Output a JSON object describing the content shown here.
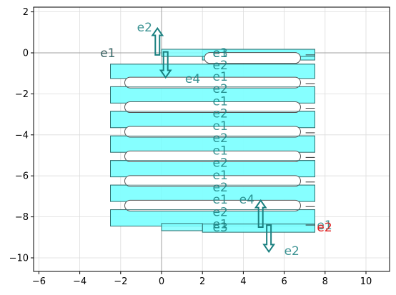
{
  "chart_data": {
    "type": "layout",
    "title": "",
    "xlabel": "",
    "ylabel": "",
    "xlim": [
      -6.2,
      11.2
    ],
    "ylim": [
      -10.6,
      2.25
    ],
    "xticks": [
      -6,
      -4,
      -2,
      0,
      2,
      4,
      6,
      8,
      10
    ],
    "yticks": [
      2,
      0,
      -2,
      -4,
      -6,
      -8,
      -10
    ],
    "grid": true,
    "colors": {
      "fill": "#80ffff",
      "outline": "#2f6f6f",
      "teal_label": "#1a8080",
      "red_label": "#e02020",
      "arrow": "#1a8080",
      "axis_zero": "#a0a0a0",
      "grid": "#dcdcdc"
    },
    "waveguides": [
      {
        "x": [
          0.0,
          7.5
        ],
        "y": 0.0,
        "w": 0.35
      },
      {
        "x": [
          0.0,
          2.0
        ],
        "y": -8.5,
        "w": 0.35
      }
    ],
    "bars": [
      {
        "x": [
          2.0,
          7.5
        ],
        "y": [
          -0.35,
          0.15
        ]
      },
      {
        "x": [
          -2.5,
          7.5
        ],
        "y": [
          -1.25,
          -0.55
        ]
      },
      {
        "x": [
          -2.5,
          7.5
        ],
        "y": [
          -2.45,
          -1.65
        ]
      },
      {
        "x": [
          -2.5,
          7.5
        ],
        "y": [
          -3.65,
          -2.85
        ]
      },
      {
        "x": [
          -2.5,
          7.5
        ],
        "y": [
          -4.85,
          -4.05
        ]
      },
      {
        "x": [
          -2.5,
          7.5
        ],
        "y": [
          -6.05,
          -5.25
        ]
      },
      {
        "x": [
          -2.5,
          7.5
        ],
        "y": [
          -7.25,
          -6.45
        ]
      },
      {
        "x": [
          -2.5,
          7.5
        ],
        "y": [
          -8.45,
          -7.65
        ]
      },
      {
        "x": [
          2.0,
          7.5
        ],
        "y": [
          -8.75,
          -8.35
        ]
      }
    ],
    "loops": [
      {
        "y": -0.25,
        "x": [
          2.1,
          6.8
        ]
      },
      {
        "y": -1.45,
        "x": [
          -1.8,
          6.8
        ]
      },
      {
        "y": -2.65,
        "x": [
          -1.8,
          6.8
        ]
      },
      {
        "y": -3.85,
        "x": [
          -1.8,
          6.8
        ]
      },
      {
        "y": -5.05,
        "x": [
          -1.8,
          6.8
        ]
      },
      {
        "y": -6.25,
        "x": [
          -1.8,
          6.8
        ]
      },
      {
        "y": -7.45,
        "x": [
          -1.8,
          6.8
        ]
      }
    ],
    "inner_lines": [
      -0.55,
      -1.65,
      -2.85,
      -4.05,
      -5.25,
      -6.45,
      -7.65
    ],
    "right_ticks": [
      -0.1,
      -1.5,
      -2.7,
      -3.9,
      -5.1,
      -6.3,
      -7.5,
      -8.4
    ],
    "arrows": [
      {
        "x": -0.2,
        "y_from": -0.1,
        "y_to": 1.2,
        "dir": "up"
      },
      {
        "x": 0.2,
        "y_from": 0.05,
        "y_to": -1.2,
        "dir": "down"
      },
      {
        "x": 4.85,
        "y_from": -8.5,
        "y_to": -7.2,
        "dir": "up"
      },
      {
        "x": 5.25,
        "y_from": -8.4,
        "y_to": -9.7,
        "dir": "down"
      }
    ],
    "labels": [
      {
        "text": "e1",
        "x": -3.0,
        "y": 0.0,
        "color": "red"
      },
      {
        "text": "e1",
        "x": -3.0,
        "y": 0.0,
        "color": "teal"
      },
      {
        "text": "e2",
        "x": -1.2,
        "y": 1.25,
        "color": "teal"
      },
      {
        "text": "e4",
        "x": 1.15,
        "y": -1.25,
        "color": "teal"
      },
      {
        "text": "e3",
        "x": 2.5,
        "y": 0.0,
        "color": "teal"
      },
      {
        "text": "e1",
        "x": 2.5,
        "y": 0.0,
        "color": "teal"
      },
      {
        "text": "e2",
        "x": 2.5,
        "y": -0.6,
        "color": "teal"
      },
      {
        "text": "e1",
        "x": 2.5,
        "y": -1.15,
        "color": "teal"
      },
      {
        "text": "e2",
        "x": 2.5,
        "y": -1.75,
        "color": "teal"
      },
      {
        "text": "e1",
        "x": 2.5,
        "y": -2.35,
        "color": "teal"
      },
      {
        "text": "e2",
        "x": 2.5,
        "y": -2.95,
        "color": "teal"
      },
      {
        "text": "e1",
        "x": 2.5,
        "y": -3.55,
        "color": "teal"
      },
      {
        "text": "e2",
        "x": 2.5,
        "y": -4.15,
        "color": "teal"
      },
      {
        "text": "e1",
        "x": 2.5,
        "y": -4.75,
        "color": "teal"
      },
      {
        "text": "e2",
        "x": 2.5,
        "y": -5.35,
        "color": "teal"
      },
      {
        "text": "e1",
        "x": 2.5,
        "y": -5.95,
        "color": "teal"
      },
      {
        "text": "e2",
        "x": 2.5,
        "y": -6.55,
        "color": "teal"
      },
      {
        "text": "e1",
        "x": 2.5,
        "y": -7.15,
        "color": "teal"
      },
      {
        "text": "e2",
        "x": 2.5,
        "y": -7.75,
        "color": "teal"
      },
      {
        "text": "e1",
        "x": 2.5,
        "y": -8.35,
        "color": "teal"
      },
      {
        "text": "e3",
        "x": 2.5,
        "y": -8.5,
        "color": "teal"
      },
      {
        "text": "e4",
        "x": 3.8,
        "y": -7.15,
        "color": "teal"
      },
      {
        "text": "e1",
        "x": 7.6,
        "y": -8.4,
        "color": "teal"
      },
      {
        "text": "e2",
        "x": 7.6,
        "y": -8.5,
        "color": "red"
      },
      {
        "text": "e2",
        "x": 6.0,
        "y": -9.65,
        "color": "teal"
      }
    ]
  }
}
